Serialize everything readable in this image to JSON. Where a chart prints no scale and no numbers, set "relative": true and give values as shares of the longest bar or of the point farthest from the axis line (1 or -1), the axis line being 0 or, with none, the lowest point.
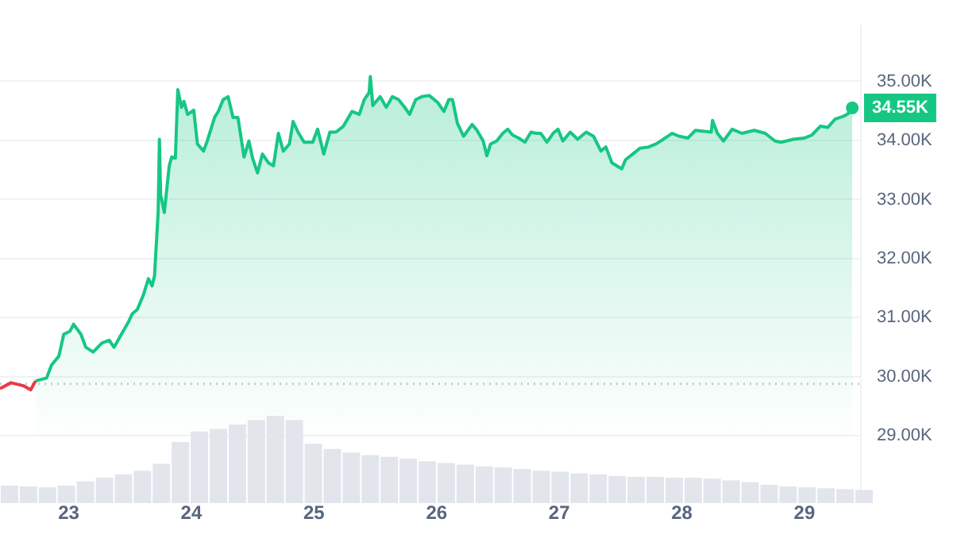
{
  "chart_data": [
    {
      "type": "area",
      "xlim": [
        22.44,
        29.46
      ],
      "xticks": [
        {
          "value": 23,
          "label": "23"
        },
        {
          "value": 24,
          "label": "24"
        },
        {
          "value": 25,
          "label": "25"
        },
        {
          "value": 26,
          "label": "26"
        },
        {
          "value": 27,
          "label": "27"
        },
        {
          "value": 28,
          "label": "28"
        },
        {
          "value": 29,
          "label": "29"
        }
      ],
      "ylim": [
        28090,
        35930
      ],
      "yticks": [
        {
          "value": 29000,
          "label": "29.00K"
        },
        {
          "value": 30000,
          "label": "30.00K"
        },
        {
          "value": 31000,
          "label": "31.00K"
        },
        {
          "value": 32000,
          "label": "32.00K"
        },
        {
          "value": 33000,
          "label": "33.00K"
        },
        {
          "value": 34000,
          "label": "34.00K"
        },
        {
          "value": 35000,
          "label": "35.00K"
        }
      ],
      "grid": "y",
      "legend": false,
      "marker": "none",
      "series": [
        {
          "type": "line",
          "color": "#ea3943",
          "x": [
            22.44,
            22.53,
            22.63,
            22.69,
            22.73
          ],
          "values": [
            29800,
            29900,
            29850,
            29780,
            29930
          ]
        },
        {
          "type": "area",
          "color": "#16c784",
          "x": [
            22.73,
            22.82,
            22.86,
            22.92,
            22.96,
            23.01,
            23.04,
            23.1,
            23.14,
            23.2,
            23.27,
            23.33,
            23.37,
            23.43,
            23.49,
            23.52,
            23.56,
            23.61,
            23.65,
            23.68,
            23.7,
            23.73,
            23.74,
            23.75,
            23.78,
            23.82,
            23.84,
            23.87,
            23.89,
            23.92,
            23.94,
            23.97,
            24.02,
            24.05,
            24.1,
            24.13,
            24.19,
            24.22,
            24.26,
            24.3,
            24.34,
            24.38,
            24.43,
            24.47,
            24.5,
            24.54,
            24.58,
            24.63,
            24.67,
            24.71,
            24.75,
            24.8,
            24.83,
            24.87,
            24.92,
            24.99,
            25.03,
            25.08,
            25.13,
            25.18,
            25.24,
            25.31,
            25.37,
            25.41,
            25.45,
            25.46,
            25.48,
            25.54,
            25.59,
            25.64,
            25.69,
            25.74,
            25.78,
            25.83,
            25.88,
            25.94,
            26.01,
            26.06,
            26.1,
            26.13,
            26.17,
            26.22,
            26.29,
            26.33,
            26.38,
            26.41,
            26.44,
            26.49,
            26.54,
            26.58,
            26.62,
            26.67,
            26.72,
            26.77,
            26.81,
            26.85,
            26.9,
            26.95,
            26.99,
            27.03,
            27.09,
            27.15,
            27.22,
            27.28,
            27.34,
            27.38,
            27.43,
            27.47,
            27.51,
            27.54,
            27.6,
            27.66,
            27.73,
            27.79,
            27.85,
            27.92,
            27.98,
            28.05,
            28.11,
            28.24,
            28.25,
            28.29,
            28.34,
            28.41,
            28.49,
            28.59,
            28.68,
            28.76,
            28.81,
            28.91,
            29.0,
            29.06,
            29.13,
            29.19,
            29.25,
            29.32,
            29.36,
            29.39
          ],
          "values": [
            29930,
            29980,
            30200,
            30350,
            30720,
            30770,
            30890,
            30720,
            30500,
            30420,
            30570,
            30620,
            30500,
            30720,
            30940,
            31070,
            31140,
            31390,
            31660,
            31540,
            31710,
            32800,
            34020,
            33080,
            32780,
            33570,
            33720,
            33700,
            34860,
            34560,
            34660,
            34440,
            34510,
            33940,
            33820,
            33990,
            34390,
            34490,
            34690,
            34740,
            34390,
            34390,
            33720,
            33990,
            33700,
            33450,
            33770,
            33620,
            33570,
            34120,
            33820,
            33940,
            34320,
            34140,
            33970,
            33970,
            34190,
            33770,
            34140,
            34140,
            34240,
            34490,
            34440,
            34690,
            34810,
            35080,
            34590,
            34740,
            34560,
            34740,
            34690,
            34560,
            34440,
            34690,
            34740,
            34760,
            34640,
            34490,
            34690,
            34690,
            34290,
            34070,
            34270,
            34170,
            33990,
            33740,
            33940,
            33990,
            34120,
            34190,
            34090,
            34040,
            33970,
            34140,
            34120,
            34120,
            33970,
            34120,
            34190,
            33990,
            34140,
            34020,
            34140,
            34070,
            33820,
            33890,
            33620,
            33570,
            33520,
            33670,
            33770,
            33870,
            33890,
            33940,
            34020,
            34120,
            34070,
            34040,
            34170,
            34140,
            34340,
            34120,
            33990,
            34190,
            34120,
            34170,
            34120,
            33990,
            33970,
            34020,
            34040,
            34090,
            34240,
            34220,
            34360,
            34410,
            34460,
            34550
          ]
        }
      ],
      "ref_lines": [
        {
          "axis": "y",
          "value": 29880,
          "color": "#c8ccd2",
          "line_style": "dotted"
        }
      ],
      "annotations": [
        {
          "text": "34.55K",
          "x": 29.39,
          "y": 34550
        }
      ]
    },
    {
      "type": "bar",
      "relative": true,
      "color": "#e2e5ec",
      "categories": [
        null,
        null,
        null,
        null,
        null,
        null,
        null,
        null,
        null,
        null,
        null,
        null,
        null,
        null,
        null,
        null,
        null,
        null,
        null,
        null,
        null,
        null,
        null,
        null,
        null,
        null,
        null,
        null,
        null,
        null,
        null,
        null,
        null,
        null,
        null,
        null,
        null,
        null,
        null,
        null,
        null,
        null,
        null,
        null,
        null,
        null
      ],
      "values": [
        0.2,
        0.19,
        0.18,
        0.2,
        0.25,
        0.29,
        0.33,
        0.37,
        0.45,
        0.7,
        0.82,
        0.85,
        0.9,
        0.95,
        1,
        0.95,
        0.68,
        0.62,
        0.58,
        0.55,
        0.53,
        0.51,
        0.48,
        0.46,
        0.44,
        0.42,
        0.41,
        0.39,
        0.37,
        0.36,
        0.34,
        0.33,
        0.31,
        0.3,
        0.3,
        0.29,
        0.29,
        0.28,
        0.26,
        0.24,
        0.21,
        0.19,
        0.18,
        0.17,
        0.16,
        0.15
      ]
    }
  ]
}
